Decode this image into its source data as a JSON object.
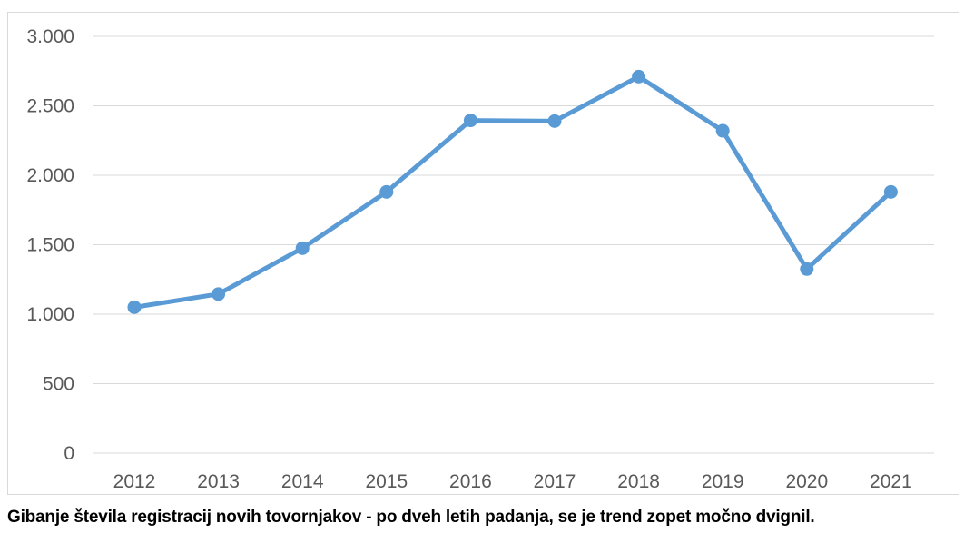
{
  "caption": "Gibanje števila registracij novih tovornjakov - po dveh letih padanja, se je trend zopet močno dvignil.",
  "chart_data": {
    "type": "line",
    "title": "",
    "xlabel": "",
    "ylabel": "",
    "categories": [
      "2012",
      "2013",
      "2014",
      "2015",
      "2016",
      "2017",
      "2018",
      "2019",
      "2020",
      "2021"
    ],
    "series": [
      {
        "values": [
          1050,
          1145,
          1475,
          1880,
          2395,
          2390,
          2710,
          2320,
          1325,
          1880
        ]
      }
    ],
    "ylim": [
      0,
      3000
    ],
    "yticks": [
      0,
      500,
      1000,
      1500,
      2000,
      2500,
      3000
    ],
    "ytick_labels": [
      "0",
      "500",
      "1.000",
      "1.500",
      "2.000",
      "2.500",
      "3.000"
    ],
    "grid": true,
    "line_color": "#5b9bd5",
    "grid_color": "#d9d9d9",
    "text_color": "#595959"
  }
}
